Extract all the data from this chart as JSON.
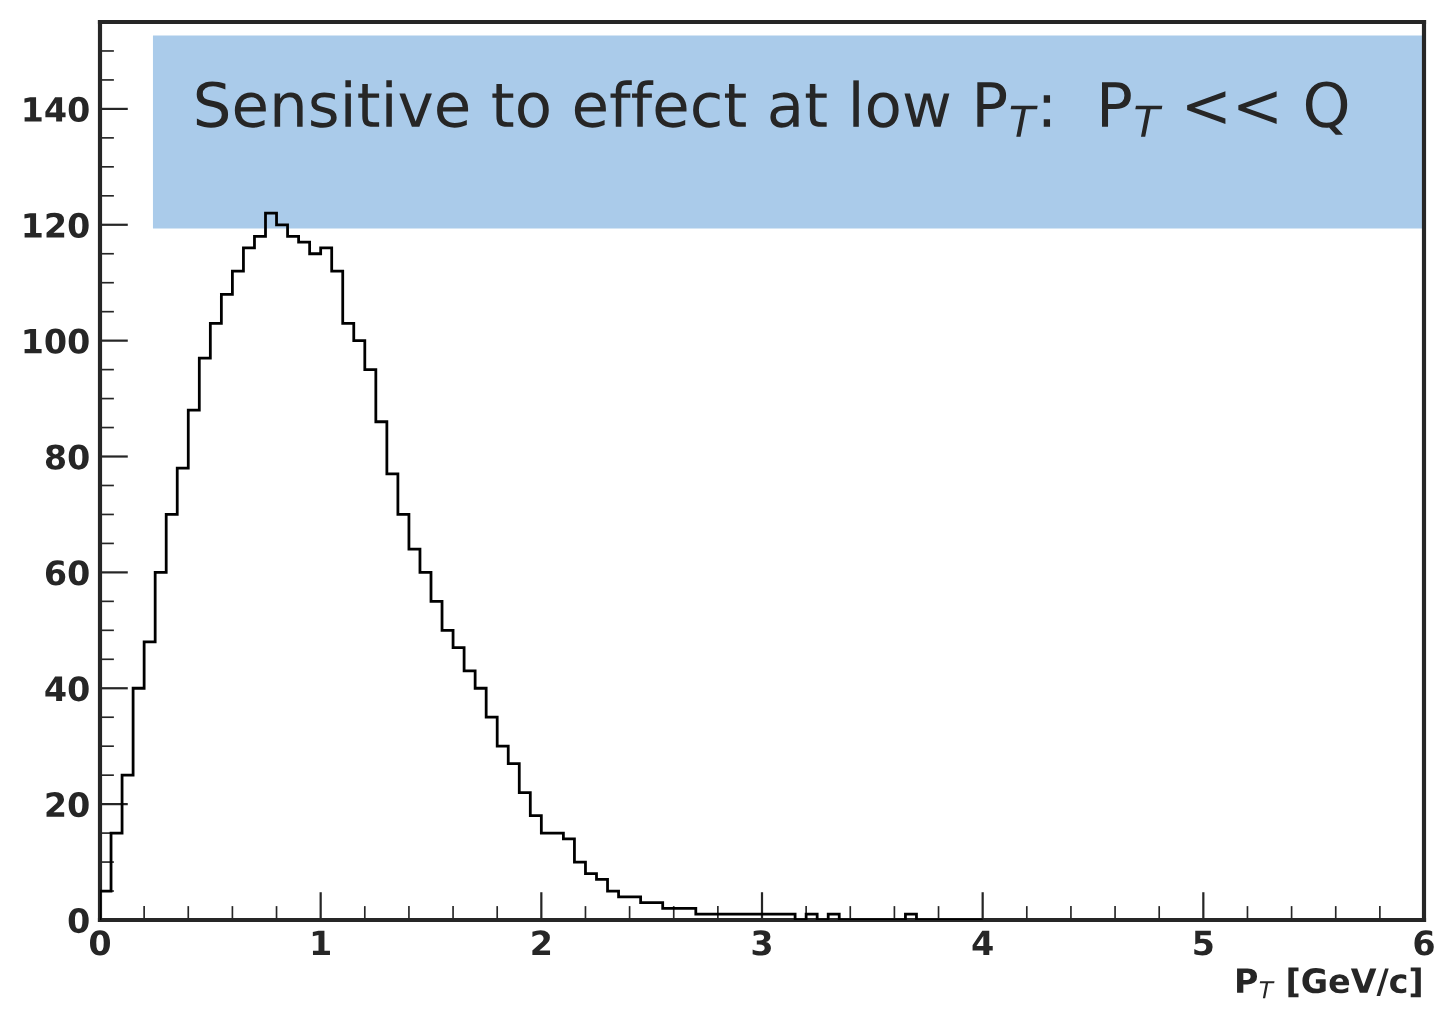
{
  "chart_data": {
    "type": "histogram",
    "xlabel": "P$_{T}$ [GeV/c]",
    "annotations": [
      "Sensitive to effect at low P$_{T}$:  P$_{T}$ << Q"
    ],
    "bins": [
      0,
      0.05,
      0.1,
      0.15,
      0.2,
      0.25,
      0.3,
      0.35,
      0.4,
      0.45,
      0.5,
      0.55,
      0.6,
      0.65,
      0.7,
      0.75,
      0.8,
      0.85,
      0.9,
      0.95,
      1.0,
      1.05,
      1.1,
      1.15,
      1.2,
      1.25,
      1.3,
      1.35,
      1.4,
      1.45,
      1.5,
      1.55,
      1.6,
      1.65,
      1.7,
      1.75,
      1.8,
      1.85,
      1.9,
      1.95,
      2.0,
      2.05,
      2.1,
      2.15,
      2.2,
      2.25,
      2.3,
      2.35,
      2.4,
      2.45,
      2.5,
      2.55,
      2.6,
      2.65,
      2.7,
      2.75,
      2.8,
      2.85,
      2.9,
      2.95,
      3.0,
      3.05,
      3.1,
      3.15,
      3.2,
      3.25,
      3.3,
      3.35,
      3.4,
      3.45,
      3.5,
      3.55,
      3.6,
      3.65,
      3.7,
      3.75,
      3.8,
      3.85,
      3.9,
      3.95,
      4.0
    ],
    "values": [
      5,
      15,
      25,
      40,
      48,
      60,
      70,
      78,
      88,
      97,
      103,
      108,
      112,
      116,
      118,
      122,
      120,
      118,
      117,
      115,
      116,
      112,
      103,
      100,
      95,
      86,
      77,
      70,
      64,
      60,
      55,
      50,
      47,
      43,
      40,
      35,
      30,
      27,
      22,
      18,
      15,
      15,
      14,
      10,
      8,
      7,
      5,
      4,
      4,
      3,
      3,
      2,
      2,
      2,
      1,
      1,
      1,
      1,
      1,
      1,
      1,
      1,
      1,
      0,
      1,
      0,
      1,
      0,
      0,
      0,
      0,
      0,
      0,
      1,
      0,
      0,
      0,
      0,
      0,
      0
    ],
    "color": "#000000",
    "xlim": [
      0,
      6
    ],
    "xticks": [
      0,
      1,
      2,
      3,
      4,
      5,
      6
    ],
    "ylim": [
      0,
      155
    ],
    "yticks": [
      0,
      20,
      40,
      60,
      80,
      100,
      120,
      140
    ],
    "grid": false,
    "legend": false
  }
}
